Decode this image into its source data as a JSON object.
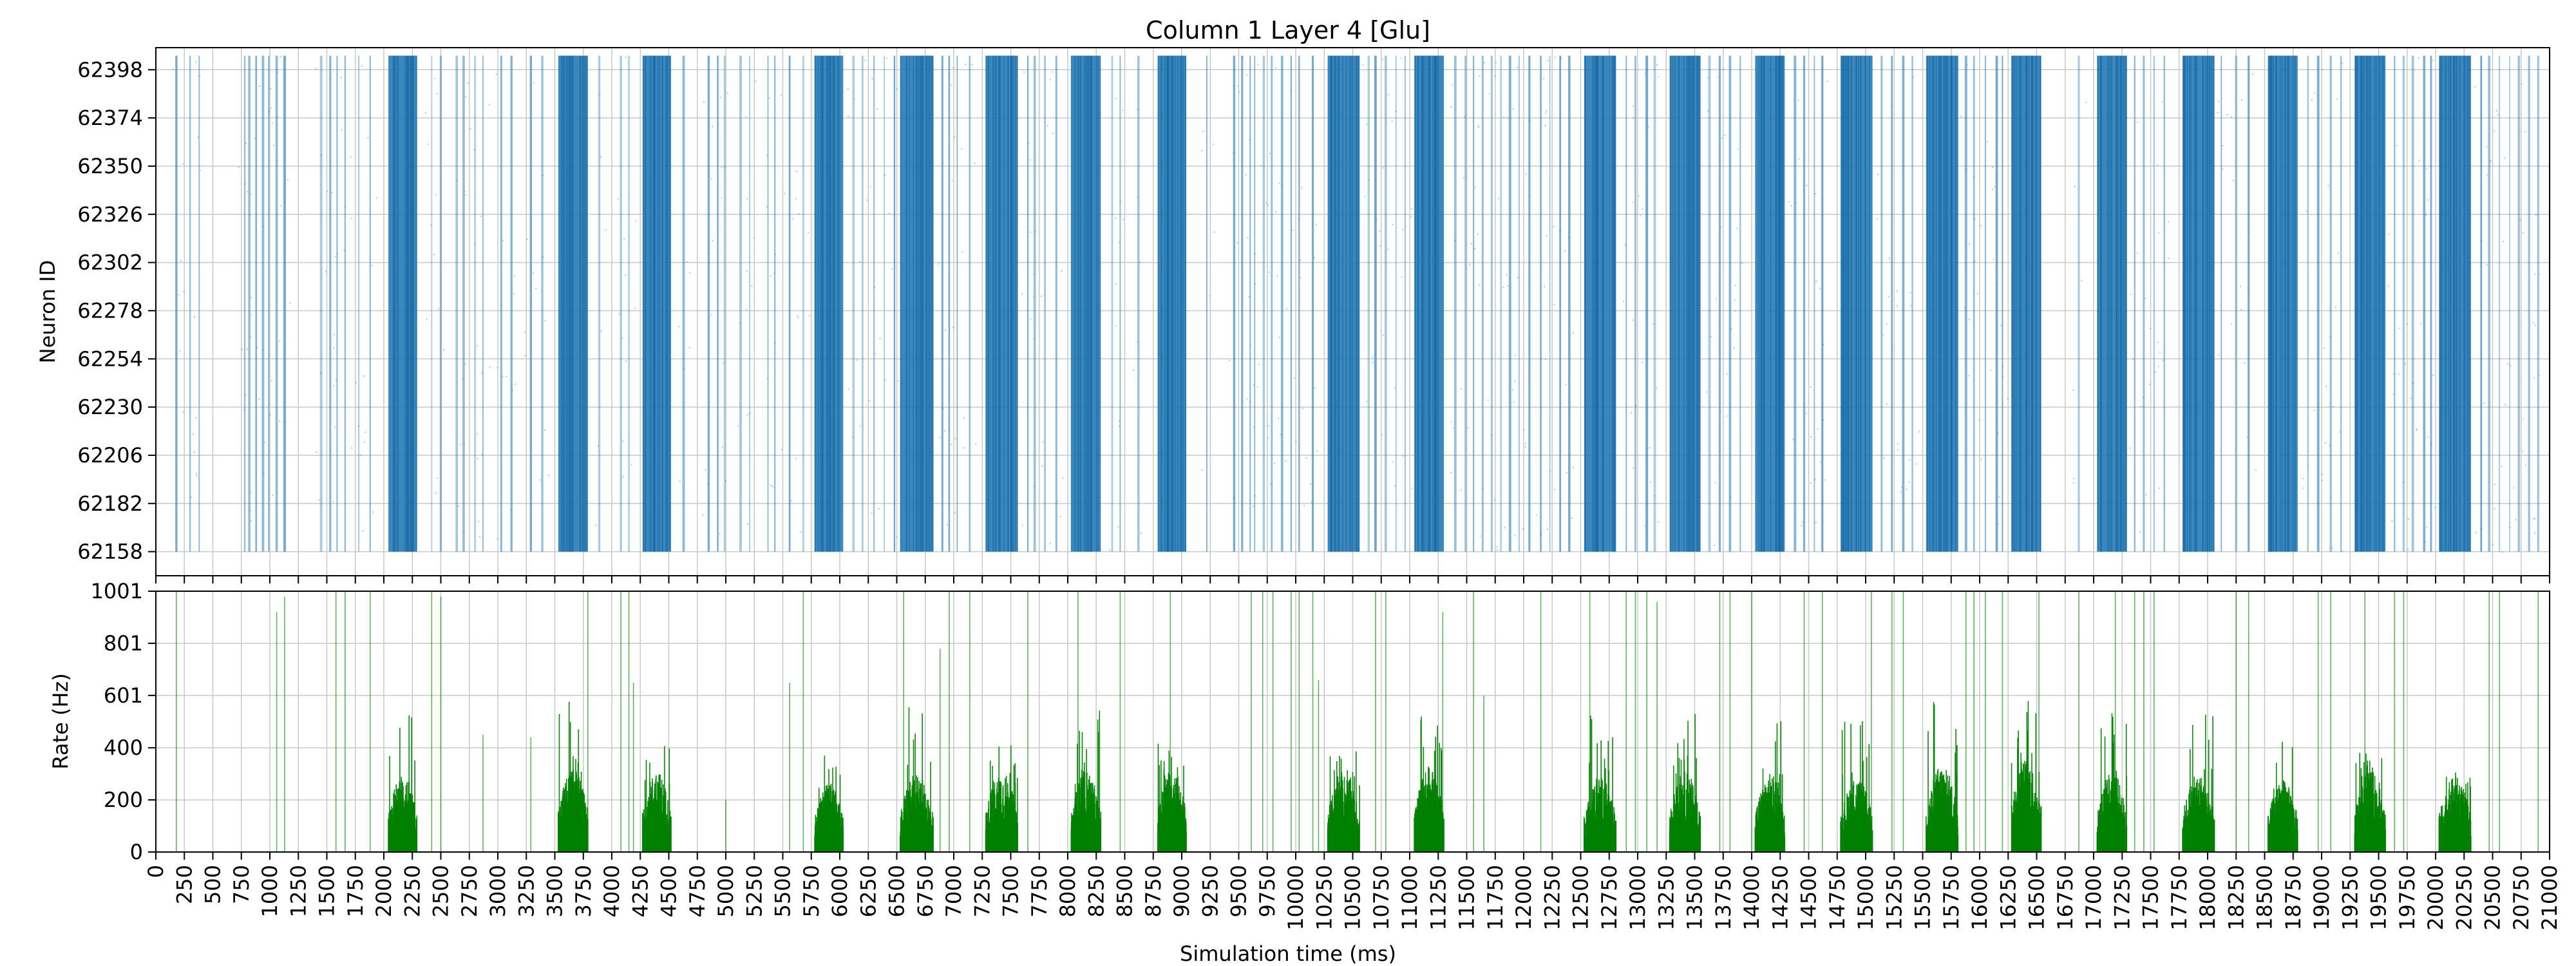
{
  "chart_data": [
    {
      "type": "scatter",
      "title": "Column 1 Layer 4 [Glu]",
      "xlabel": "",
      "ylabel": "Neuron ID",
      "xlim": [
        0,
        21000
      ],
      "ylim": [
        62146,
        62409
      ],
      "y_ticks": [
        62158,
        62182,
        62206,
        62230,
        62254,
        62278,
        62302,
        62326,
        62350,
        62374,
        62398
      ],
      "grid": true,
      "marker_color": "#1f77b4",
      "neuron_id_range": [
        62158,
        62405
      ],
      "series": [
        {
          "name": "",
          "dense_bursts_ms": [
            [
              2040,
              2290
            ],
            [
              3530,
              3790
            ],
            [
              4270,
              4520
            ],
            [
              5780,
              6030
            ],
            [
              6530,
              6820
            ],
            [
              7280,
              7560
            ],
            [
              8030,
              8290
            ],
            [
              8790,
              9040
            ],
            [
              10280,
              10560
            ],
            [
              11040,
              11300
            ],
            [
              12530,
              12810
            ],
            [
              13280,
              13550
            ],
            [
              14030,
              14290
            ],
            [
              14780,
              15060
            ],
            [
              15530,
              15810
            ],
            [
              16280,
              16540
            ],
            [
              17030,
              17290
            ],
            [
              17780,
              18060
            ],
            [
              18530,
              18790
            ],
            [
              19290,
              19560
            ],
            [
              20030,
              20310
            ]
          ],
          "sparse_spike_times_ms": [
            180,
            300,
            380,
            780,
            820,
            880,
            940,
            990,
            1060,
            1130,
            1450,
            1530,
            1590,
            1660,
            1780,
            1880,
            2420,
            2500,
            2640,
            2700,
            2800,
            2870,
            3030,
            3120,
            3290,
            3390,
            3890,
            4080,
            4150,
            4630,
            4850,
            4930,
            4990,
            5130,
            5210,
            5370,
            5430,
            5560,
            5680,
            6120,
            6200,
            6300,
            6390,
            6480,
            6900,
            6960,
            7030,
            7140,
            7650,
            7710,
            7800,
            7900,
            8390,
            8460,
            8620,
            9220,
            9460,
            9530,
            9600,
            9640,
            9720,
            9790,
            9880,
            9960,
            10030,
            10150,
            10640,
            10700,
            10790,
            10880,
            10960,
            11400,
            11490,
            11560,
            11640,
            11720,
            11800,
            11880,
            11960,
            12050,
            12150,
            12230,
            12320,
            12400,
            12900,
            12980,
            13080,
            13150,
            13630,
            13720,
            13810,
            13900,
            14380,
            14460,
            14550,
            14620,
            15140,
            15230,
            15330,
            15410,
            15880,
            15950,
            16050,
            16150,
            16200,
            16870,
            17360,
            17440,
            17530,
            17620,
            18120,
            18250,
            18360,
            18880,
            18970,
            19080,
            19170,
            19640,
            19720,
            19800,
            19900,
            19960,
            20400,
            20470,
            20560,
            20650,
            20730,
            20820,
            20900
          ]
        }
      ]
    },
    {
      "type": "bar",
      "title": "",
      "xlabel": "Simulation time (ms)",
      "ylabel": "Rate (Hz)",
      "xlim": [
        0,
        21000
      ],
      "ylim": [
        0,
        1001
      ],
      "y_ticks": [
        0,
        200,
        400,
        601,
        801,
        1001
      ],
      "x_ticks": [
        0,
        250,
        500,
        750,
        1000,
        1250,
        1500,
        1750,
        2000,
        2250,
        2500,
        2750,
        3000,
        3250,
        3500,
        3750,
        4000,
        4250,
        4500,
        4750,
        5000,
        5250,
        5500,
        5750,
        6000,
        6250,
        6500,
        6750,
        7000,
        7250,
        7500,
        7750,
        8000,
        8250,
        8500,
        8750,
        9000,
        9250,
        9500,
        9750,
        10000,
        10250,
        10500,
        10750,
        11000,
        11250,
        11500,
        11750,
        12000,
        12250,
        12500,
        12750,
        13000,
        13250,
        13500,
        13750,
        14000,
        14250,
        14500,
        14750,
        15000,
        15250,
        15500,
        15750,
        16000,
        16250,
        16500,
        16750,
        17000,
        17250,
        17500,
        17750,
        18000,
        18250,
        18500,
        18750,
        19000,
        19250,
        19500,
        19750,
        20000,
        20250,
        20500,
        20750,
        21000
      ],
      "grid": true,
      "bar_color": "#008000",
      "series": [
        {
          "name": "",
          "burst_rates": [
            {
              "start": 2040,
              "end": 2290,
              "typical_hz": 250,
              "peak_hz": 560
            },
            {
              "start": 3530,
              "end": 3790,
              "typical_hz": 270,
              "peak_hz": 590
            },
            {
              "start": 4270,
              "end": 4520,
              "typical_hz": 260,
              "peak_hz": 420
            },
            {
              "start": 5780,
              "end": 6030,
              "typical_hz": 220,
              "peak_hz": 380
            },
            {
              "start": 6530,
              "end": 6820,
              "typical_hz": 250,
              "peak_hz": 560
            },
            {
              "start": 7280,
              "end": 7560,
              "typical_hz": 260,
              "peak_hz": 430
            },
            {
              "start": 8030,
              "end": 8290,
              "typical_hz": 260,
              "peak_hz": 550
            },
            {
              "start": 8790,
              "end": 9040,
              "typical_hz": 270,
              "peak_hz": 430
            },
            {
              "start": 10280,
              "end": 10560,
              "typical_hz": 250,
              "peak_hz": 390
            },
            {
              "start": 11040,
              "end": 11300,
              "typical_hz": 270,
              "peak_hz": 520
            },
            {
              "start": 12530,
              "end": 12810,
              "typical_hz": 240,
              "peak_hz": 540
            },
            {
              "start": 13280,
              "end": 13550,
              "typical_hz": 260,
              "peak_hz": 570
            },
            {
              "start": 14030,
              "end": 14290,
              "typical_hz": 250,
              "peak_hz": 520
            },
            {
              "start": 14780,
              "end": 15060,
              "typical_hz": 240,
              "peak_hz": 510
            },
            {
              "start": 15530,
              "end": 15810,
              "typical_hz": 280,
              "peak_hz": 600
            },
            {
              "start": 16280,
              "end": 16540,
              "typical_hz": 300,
              "peak_hz": 640
            },
            {
              "start": 17030,
              "end": 17290,
              "typical_hz": 260,
              "peak_hz": 600
            },
            {
              "start": 17780,
              "end": 18060,
              "typical_hz": 250,
              "peak_hz": 540
            },
            {
              "start": 18530,
              "end": 18790,
              "typical_hz": 230,
              "peak_hz": 490
            },
            {
              "start": 19290,
              "end": 19560,
              "typical_hz": 260,
              "peak_hz": 380
            },
            {
              "start": 20030,
              "end": 20310,
              "typical_hz": 240,
              "peak_hz": 400
            }
          ],
          "isolated_spikes": [
            [
              180,
              1001
            ],
            [
              1060,
              920
            ],
            [
              1130,
              980
            ],
            [
              1580,
              1001
            ],
            [
              1660,
              1001
            ],
            [
              1880,
              1001
            ],
            [
              2420,
              1001
            ],
            [
              2500,
              980
            ],
            [
              2870,
              450
            ],
            [
              3290,
              440
            ],
            [
              3790,
              1001
            ],
            [
              4080,
              1001
            ],
            [
              4150,
              1001
            ],
            [
              4190,
              650
            ],
            [
              5000,
              200
            ],
            [
              5560,
              650
            ],
            [
              5680,
              1001
            ],
            [
              6560,
              1001
            ],
            [
              6880,
              780
            ],
            [
              6960,
              1001
            ],
            [
              7140,
              1001
            ],
            [
              7650,
              1001
            ],
            [
              8090,
              1001
            ],
            [
              8460,
              1001
            ],
            [
              8900,
              1001
            ],
            [
              9610,
              1001
            ],
            [
              9710,
              1001
            ],
            [
              9800,
              1001
            ],
            [
              9960,
              1001
            ],
            [
              10030,
              1001
            ],
            [
              10150,
              1001
            ],
            [
              10200,
              660
            ],
            [
              10700,
              1001
            ],
            [
              10790,
              1001
            ],
            [
              11290,
              920
            ],
            [
              11560,
              1001
            ],
            [
              11650,
              600
            ],
            [
              12150,
              1001
            ],
            [
              12580,
              1001
            ],
            [
              12900,
              1001
            ],
            [
              12980,
              1001
            ],
            [
              13080,
              1001
            ],
            [
              13170,
              960
            ],
            [
              13720,
              1001
            ],
            [
              13810,
              1001
            ],
            [
              14000,
              1001
            ],
            [
              14460,
              1001
            ],
            [
              14620,
              1001
            ],
            [
              15050,
              1001
            ],
            [
              15230,
              1001
            ],
            [
              15330,
              1001
            ],
            [
              15880,
              1001
            ],
            [
              15950,
              1001
            ],
            [
              16050,
              1001
            ],
            [
              16200,
              1001
            ],
            [
              16520,
              1001
            ],
            [
              16870,
              1001
            ],
            [
              17190,
              1001
            ],
            [
              17360,
              1001
            ],
            [
              17440,
              1001
            ],
            [
              17530,
              1001
            ],
            [
              18250,
              1001
            ],
            [
              18360,
              1001
            ],
            [
              18970,
              1001
            ],
            [
              19080,
              1001
            ],
            [
              19380,
              1001
            ],
            [
              19640,
              1001
            ],
            [
              19720,
              1001
            ],
            [
              20470,
              1001
            ],
            [
              20560,
              1001
            ],
            [
              20900,
              1001
            ]
          ]
        }
      ]
    }
  ]
}
